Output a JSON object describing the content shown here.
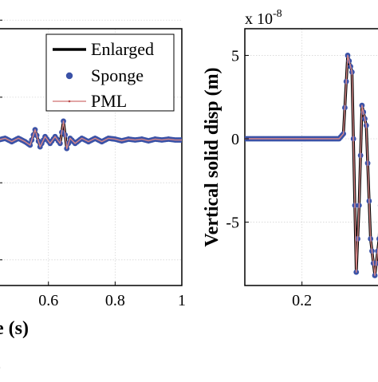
{
  "chart_data": [
    {
      "type": "line",
      "title": "",
      "xlabel": "e (s)",
      "ylabel": "",
      "xlim": [
        0.45,
        1.0
      ],
      "ylim": [
        -8.5,
        6.5
      ],
      "grid": true,
      "legend_position": "top-right",
      "x_ticks": [
        0.6,
        0.8,
        1.0
      ],
      "x_tick_labels": [
        "0.6",
        "0.8",
        "1"
      ],
      "y_ticks": [
        -7,
        -2.5,
        2.5,
        7
      ],
      "series": [
        {
          "name": "Enlarged",
          "color": "#000000",
          "x": [
            0.45,
            0.47,
            0.49,
            0.51,
            0.53,
            0.545,
            0.56,
            0.575,
            0.59,
            0.605,
            0.62,
            0.635,
            0.645,
            0.655,
            0.665,
            0.68,
            0.7,
            0.72,
            0.74,
            0.76,
            0.78,
            0.8,
            0.82,
            0.84,
            0.86,
            0.88,
            0.9,
            0.92,
            0.94,
            0.96,
            0.98,
            1.0
          ],
          "y": [
            0,
            0.1,
            -0.1,
            0.1,
            -0.1,
            -0.3,
            0.6,
            -0.4,
            0.2,
            -0.2,
            0.2,
            -0.2,
            1.1,
            -0.5,
            0.1,
            -0.2,
            0.1,
            -0.1,
            0.1,
            -0.1,
            0.1,
            0.05,
            -0.05,
            0.05,
            0,
            0.05,
            -0.05,
            0.05,
            0,
            0.05,
            0,
            0
          ]
        },
        {
          "name": "Sponge",
          "color": "#3b52a7",
          "x": [
            0.45,
            0.47,
            0.49,
            0.51,
            0.53,
            0.545,
            0.56,
            0.575,
            0.59,
            0.605,
            0.62,
            0.635,
            0.645,
            0.655,
            0.665,
            0.68,
            0.7,
            0.72,
            0.74,
            0.76,
            0.78,
            0.8,
            0.82,
            0.84,
            0.86,
            0.88,
            0.9,
            0.92,
            0.94,
            0.96,
            0.98,
            1.0
          ],
          "y": [
            0,
            0.1,
            -0.1,
            0.1,
            -0.1,
            -0.3,
            0.6,
            -0.4,
            0.2,
            -0.2,
            0.2,
            -0.2,
            1.1,
            -0.5,
            0.1,
            -0.2,
            0.1,
            -0.1,
            0.1,
            -0.1,
            0.1,
            0.05,
            -0.05,
            0.05,
            0,
            0.05,
            -0.05,
            0.05,
            0,
            0.05,
            0,
            0
          ]
        },
        {
          "name": "PML",
          "color": "#d98888",
          "x": [
            0.45,
            0.47,
            0.49,
            0.51,
            0.53,
            0.545,
            0.56,
            0.575,
            0.59,
            0.605,
            0.62,
            0.635,
            0.645,
            0.655,
            0.665,
            0.68,
            0.7,
            0.72,
            0.74,
            0.76,
            0.78,
            0.8,
            0.82,
            0.84,
            0.86,
            0.88,
            0.9,
            0.92,
            0.94,
            0.96,
            0.98,
            1.0
          ],
          "y": [
            0,
            0.1,
            -0.1,
            0.1,
            -0.1,
            -0.3,
            0.6,
            -0.4,
            0.2,
            -0.2,
            0.2,
            -0.2,
            1.1,
            -0.5,
            0.1,
            -0.2,
            0.1,
            -0.1,
            0.1,
            -0.1,
            0.1,
            0.05,
            -0.05,
            0.05,
            0,
            0.05,
            -0.05,
            0.05,
            0,
            0.05,
            0,
            0
          ]
        }
      ],
      "panel_label": ")"
    },
    {
      "type": "line",
      "title": "",
      "xlabel": "",
      "ylabel": "Vertical solid disp (m)",
      "y_multiplier": "x 10",
      "y_multiplier_exponent": "-8",
      "xlim": [
        0.0,
        0.48
      ],
      "ylim": [
        -8.8,
        6.6
      ],
      "grid": true,
      "x_ticks": [
        0.2
      ],
      "x_tick_labels": [
        "0.2"
      ],
      "y_ticks": [
        5,
        0,
        -5
      ],
      "y_tick_labels": [
        "5",
        "0",
        "-5"
      ],
      "series": [
        {
          "name": "Enlarged",
          "color": "#000000",
          "x": [
            0.0,
            0.1,
            0.2,
            0.3,
            0.33,
            0.345,
            0.36,
            0.375,
            0.39,
            0.4,
            0.41,
            0.425,
            0.44,
            0.455,
            0.47,
            0.48
          ],
          "y": [
            0,
            0,
            0,
            0,
            0,
            0.3,
            5.0,
            4.0,
            -8.0,
            -4.0,
            2.0,
            0.8,
            -6.0,
            -8.2,
            -6.0,
            -2.0
          ]
        },
        {
          "name": "Sponge",
          "color": "#3b52a7",
          "x": [
            0.0,
            0.1,
            0.2,
            0.3,
            0.33,
            0.345,
            0.36,
            0.375,
            0.39,
            0.4,
            0.41,
            0.425,
            0.44,
            0.455,
            0.47,
            0.48
          ],
          "y": [
            0,
            0,
            0,
            0,
            0,
            0.3,
            5.0,
            4.0,
            -8.0,
            -4.0,
            2.0,
            0.8,
            -6.0,
            -8.2,
            -6.0,
            -2.0
          ]
        },
        {
          "name": "PML",
          "color": "#d98888",
          "x": [
            0.0,
            0.1,
            0.2,
            0.3,
            0.33,
            0.345,
            0.36,
            0.375,
            0.39,
            0.4,
            0.41,
            0.425,
            0.44,
            0.455,
            0.47,
            0.48
          ],
          "y": [
            0,
            0,
            0,
            0,
            0,
            0.3,
            5.0,
            4.0,
            -8.0,
            -4.0,
            2.0,
            0.8,
            -6.0,
            -8.2,
            -6.0,
            -2.0
          ]
        }
      ]
    }
  ]
}
